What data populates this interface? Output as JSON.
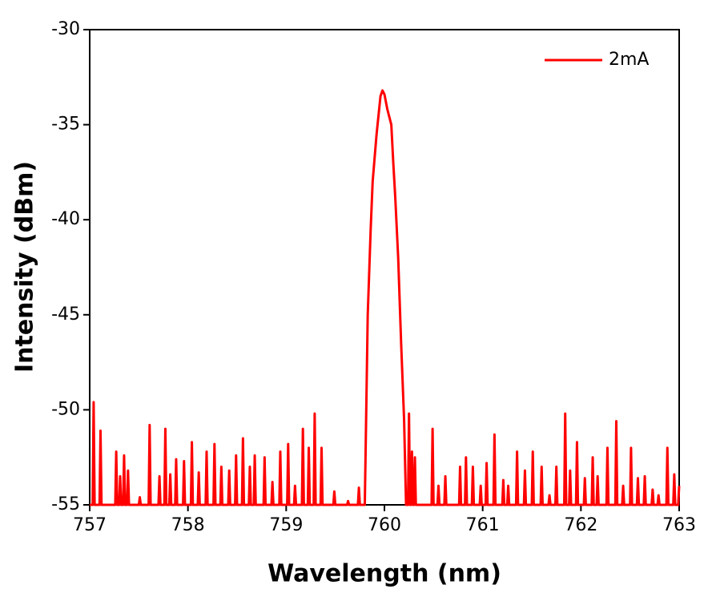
{
  "chart_data": {
    "type": "line",
    "xlabel": "Wavelength (nm)",
    "ylabel": "Intensity (dBm)",
    "xlim": [
      757,
      763
    ],
    "xticks": [
      757,
      758,
      759,
      760,
      761,
      762,
      763
    ],
    "ylim": [
      -55,
      -30
    ],
    "yticks": [
      -55,
      -50,
      -45,
      -40,
      -35,
      -30
    ],
    "legend": "upper right",
    "x": [
      757.0,
      757.03,
      757.04,
      757.05,
      757.1,
      757.11,
      757.12,
      757.26,
      757.27,
      757.28,
      757.3,
      757.31,
      757.32,
      757.34,
      757.35,
      757.36,
      757.38,
      757.39,
      757.4,
      757.5,
      757.51,
      757.52,
      757.6,
      757.61,
      757.62,
      757.7,
      757.71,
      757.72,
      757.76,
      757.77,
      757.78,
      757.81,
      757.82,
      757.83,
      757.87,
      757.88,
      757.89,
      757.95,
      757.96,
      757.97,
      758.03,
      758.04,
      758.05,
      758.1,
      758.11,
      758.12,
      758.18,
      758.19,
      758.2,
      758.26,
      758.27,
      758.28,
      758.33,
      758.34,
      758.35,
      758.41,
      758.42,
      758.43,
      758.48,
      758.49,
      758.5,
      758.55,
      758.56,
      758.57,
      758.62,
      758.63,
      758.64,
      758.67,
      758.68,
      758.69,
      758.77,
      758.78,
      758.79,
      758.85,
      758.86,
      758.87,
      758.93,
      758.94,
      758.95,
      759.01,
      759.02,
      759.03,
      759.08,
      759.09,
      759.1,
      759.16,
      759.17,
      759.18,
      759.22,
      759.23,
      759.24,
      759.28,
      759.29,
      759.3,
      759.35,
      759.36,
      759.37,
      759.48,
      759.49,
      759.5,
      759.62,
      759.63,
      759.64,
      759.73,
      759.74,
      759.75,
      759.8,
      759.83,
      759.86,
      759.88,
      759.92,
      759.96,
      759.98,
      760.0,
      760.03,
      760.07,
      760.09,
      760.11,
      760.14,
      760.17,
      760.2,
      760.22,
      760.24,
      760.25,
      760.26,
      760.27,
      760.28,
      760.29,
      760.3,
      760.31,
      760.32,
      760.48,
      760.49,
      760.5,
      760.54,
      760.55,
      760.56,
      760.61,
      760.62,
      760.63,
      760.76,
      760.77,
      760.78,
      760.82,
      760.83,
      760.84,
      760.89,
      760.9,
      760.91,
      760.97,
      760.98,
      760.99,
      761.03,
      761.04,
      761.05,
      761.11,
      761.12,
      761.13,
      761.2,
      761.21,
      761.22,
      761.25,
      761.26,
      761.27,
      761.34,
      761.35,
      761.36,
      761.42,
      761.43,
      761.44,
      761.5,
      761.51,
      761.52,
      761.59,
      761.6,
      761.61,
      761.67,
      761.68,
      761.69,
      761.74,
      761.75,
      761.76,
      761.83,
      761.84,
      761.85,
      761.88,
      761.89,
      761.9,
      761.95,
      761.96,
      761.97,
      762.03,
      762.04,
      762.05,
      762.11,
      762.12,
      762.13,
      762.16,
      762.17,
      762.18,
      762.26,
      762.27,
      762.28,
      762.35,
      762.36,
      762.37,
      762.42,
      762.43,
      762.44,
      762.5,
      762.51,
      762.52,
      762.57,
      762.58,
      762.59,
      762.64,
      762.65,
      762.66,
      762.72,
      762.73,
      762.74,
      762.78,
      762.79,
      762.8,
      762.87,
      762.88,
      762.89,
      762.94,
      762.95,
      762.96,
      762.99,
      763.0
    ],
    "series": [
      {
        "name": "2mA",
        "color": "#ff0000",
        "values": [
          -55,
          -55,
          -49.6,
          -55,
          -55,
          -51.1,
          -55,
          -55,
          -52.2,
          -55,
          -55,
          -53.5,
          -55,
          -55,
          -52.4,
          -55,
          -55,
          -53.2,
          -55,
          -55,
          -54.6,
          -55,
          -55,
          -50.8,
          -55,
          -55,
          -53.5,
          -55,
          -55,
          -51.0,
          -55,
          -55,
          -53.4,
          -55,
          -55,
          -52.6,
          -55,
          -55,
          -52.7,
          -55,
          -55,
          -51.7,
          -55,
          -55,
          -53.3,
          -55,
          -55,
          -52.2,
          -55,
          -55,
          -51.8,
          -55,
          -55,
          -53.0,
          -55,
          -55,
          -53.2,
          -55,
          -55,
          -52.4,
          -55,
          -55,
          -51.5,
          -55,
          -55,
          -53.0,
          -55,
          -55,
          -52.4,
          -55,
          -55,
          -52.5,
          -55,
          -55,
          -53.8,
          -55,
          -55,
          -52.2,
          -55,
          -55,
          -51.8,
          -55,
          -55,
          -54.0,
          -55,
          -55,
          -51.0,
          -55,
          -55,
          -52.0,
          -55,
          -55,
          -50.2,
          -55,
          -55,
          -52.0,
          -55,
          -55,
          -54.3,
          -55,
          -55,
          -54.8,
          -55,
          -55,
          -54.1,
          -55,
          -55,
          -45,
          -40.5,
          -38,
          -35.5,
          -33.5,
          -33.2,
          -33.4,
          -34.2,
          -35,
          -37,
          -38.8,
          -42,
          -46.5,
          -50.5,
          -55,
          -55,
          -50.2,
          -55,
          -55,
          -52.2,
          -55,
          -55,
          -52.5,
          -55,
          -55,
          -51.0,
          -55,
          -55,
          -54.0,
          -55,
          -55,
          -53.5,
          -55,
          -55,
          -53.0,
          -55,
          -55,
          -52.5,
          -55,
          -55,
          -53.0,
          -55,
          -55,
          -54.0,
          -55,
          -55,
          -52.8,
          -55,
          -55,
          -51.3,
          -55,
          -55,
          -53.7,
          -55,
          -55,
          -54.0,
          -55,
          -55,
          -52.2,
          -55,
          -55,
          -53.2,
          -55,
          -55,
          -52.2,
          -55,
          -55,
          -53.0,
          -55,
          -55,
          -54.5,
          -55,
          -55,
          -53.0,
          -55,
          -55,
          -50.2,
          -55,
          -55,
          -53.2,
          -55,
          -55,
          -51.7,
          -55,
          -55,
          -53.6,
          -55,
          -55,
          -52.5,
          -55,
          -55,
          -53.5,
          -55,
          -55,
          -52.0,
          -55,
          -55,
          -50.6,
          -55,
          -55,
          -54.0,
          -55,
          -55,
          -52.0,
          -55,
          -55,
          -53.6,
          -55,
          -55,
          -53.5,
          -55,
          -55,
          -54.2,
          -55,
          -55,
          -54.5,
          -55,
          -55,
          -52.0,
          -55,
          -55,
          -53.4,
          -55,
          -55,
          -54.0
        ]
      }
    ]
  }
}
